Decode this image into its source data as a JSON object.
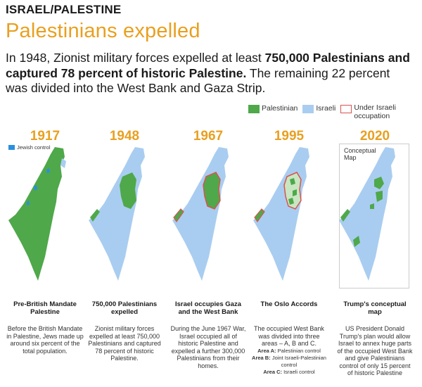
{
  "header": {
    "kicker": "ISRAEL/PALESTINE",
    "headline": "Palestinians expelled",
    "intro_plain_1": "In 1948, Zionist military forces expelled at least ",
    "intro_bold": "750,000 Palestinians and captured 78 percent of historic Palestine.",
    "intro_plain_2": " The remaining 22 percent was divided into the West Bank and Gaza Strip."
  },
  "legend": {
    "palestinian": "Palestinian",
    "israeli": "Israeli",
    "occupation": "Under Israeli occupation"
  },
  "colors": {
    "palestinian": "#4fa84a",
    "israeli": "#a9cdf0",
    "occupation_border": "#d9534f",
    "jewish_control": "#2a8fde",
    "accent": "#e8a020"
  },
  "panels": [
    {
      "year": "1917",
      "title": "Pre-British Mandate Palestine",
      "body": "Before the British Mandate in Palestine, Jews made up around six percent of the total population.",
      "map_note": "Jewish control"
    },
    {
      "year": "1948",
      "title": "750,000 Palestinians expelled",
      "body": "Zionist military forces expelled at least 750,000 Palestinians and captured 78 percent of historic Palestine."
    },
    {
      "year": "1967",
      "title": "Israel occupies Gaza and the West Bank",
      "body": "During the June 1967 War, Israel occupied all of historic Palestine and expelled a further 300,000 Palestinians from their homes."
    },
    {
      "year": "1995",
      "title": "The Oslo Accords",
      "body": "The occupied West Bank was divided into three areas – A, B and C.",
      "areas": [
        {
          "label": "Area A:",
          "text": " Palestinian control"
        },
        {
          "label": "Area B:",
          "text": " Joint Israeli-Palestinian control"
        },
        {
          "label": "Area C:",
          "text": " Israeli control"
        }
      ]
    },
    {
      "year": "2020",
      "title": "Trump's conceptual map",
      "body": "US President Donald Trump's plan would allow Israel to annex huge parts of the occupied West Bank and give Palestinians control of only 15 percent of historic Palestine",
      "map_note": "Conceptual Map"
    }
  ]
}
